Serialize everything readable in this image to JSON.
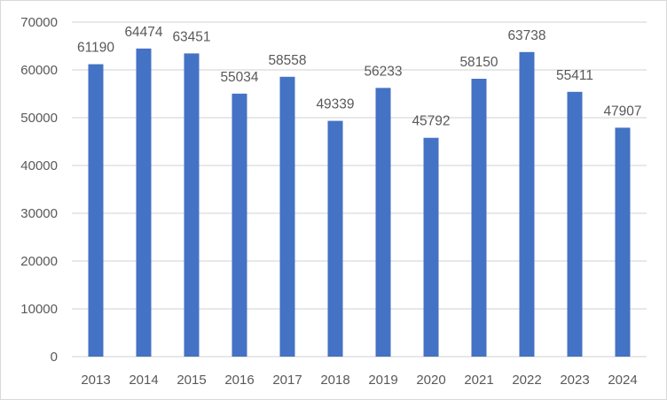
{
  "chart_data": {
    "type": "bar",
    "title": "",
    "xlabel": "",
    "ylabel": "",
    "categories": [
      "2013",
      "2014",
      "2015",
      "2016",
      "2017",
      "2018",
      "2019",
      "2020",
      "2021",
      "2022",
      "2023",
      "2024"
    ],
    "values": [
      61190,
      64474,
      63451,
      55034,
      58558,
      49339,
      56233,
      45792,
      58150,
      63738,
      55411,
      47907
    ],
    "ylim": [
      0,
      70000
    ],
    "yticks": [
      0,
      10000,
      20000,
      30000,
      40000,
      50000,
      60000,
      70000
    ],
    "grid": true,
    "data_labels": true,
    "bar_color": "#4472C4",
    "grid_color": "#D9D9D9"
  }
}
